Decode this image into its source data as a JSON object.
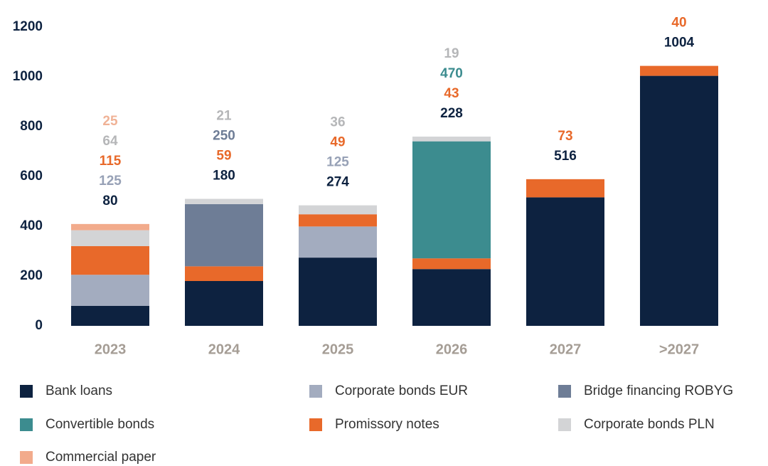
{
  "chart_data": {
    "type": "stacked_bar",
    "categories": [
      "2023",
      "2024",
      "2025",
      "2026",
      "2027",
      ">2027"
    ],
    "series": [
      {
        "name": "Bank loans",
        "color": "#0d2240",
        "label_color": "#0d2240",
        "values": [
          80,
          180,
          274,
          228,
          516,
          1004
        ]
      },
      {
        "name": "Corporate bonds EUR",
        "color": "#a3acbf",
        "label_color": "#97a1b6",
        "values": [
          125,
          null,
          125,
          null,
          null,
          null
        ]
      },
      {
        "name": "Promissory notes",
        "color": "#e8692a",
        "label_color": "#e8692a",
        "values": [
          115,
          59,
          49,
          43,
          73,
          40
        ]
      },
      {
        "name": "Bridge financing ROBYG",
        "color": "#6e7d96",
        "label_color": "#6e7d96",
        "values": [
          null,
          250,
          null,
          null,
          null,
          null
        ]
      },
      {
        "name": "Convertible bonds",
        "color": "#3c8c8f",
        "label_color": "#3c8c8f",
        "values": [
          null,
          null,
          null,
          470,
          null,
          null
        ]
      },
      {
        "name": "Corporate bonds PLN",
        "color": "#d3d4d6",
        "label_color": "#b5b6b8",
        "values": [
          64,
          21,
          36,
          19,
          null,
          null
        ]
      },
      {
        "name": "Commercial paper",
        "color": "#f2ab8c",
        "label_color": "#f0b296",
        "values": [
          25,
          null,
          null,
          null,
          null,
          null
        ]
      }
    ],
    "ylim": [
      0,
      1200
    ],
    "yticks": [
      0,
      200,
      400,
      600,
      800,
      1000,
      1200
    ],
    "grid": false
  }
}
